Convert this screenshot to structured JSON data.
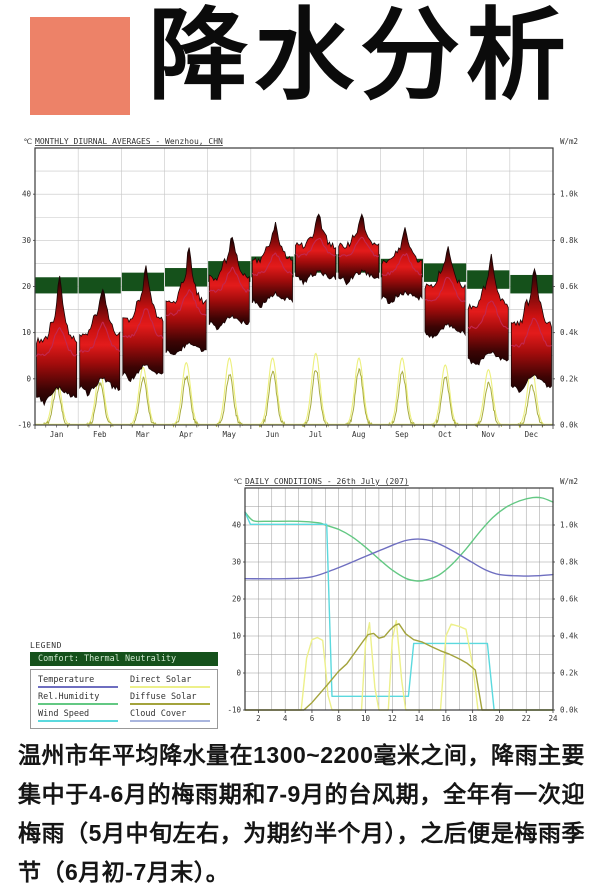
{
  "page": {
    "title": "降水分析",
    "accent_color": "#ED8268",
    "background": "#ffffff"
  },
  "paragraph": {
    "text": "温州市年平均降水量在1300~2200毫米之间，降雨主要集中于4-6月的梅雨期和7-9月的台风期，全年有一次迎梅雨（5月中旬左右，为期约半个月），之后便是梅雨季节（6月初-7月末）。"
  },
  "legend": {
    "header": "LEGEND",
    "comfort_label": "Comfort: Thermal Neutrality",
    "comfort_color": "#15511B",
    "entries": [
      {
        "label": "Temperature",
        "color": "#6E6EC0"
      },
      {
        "label": "Rel.Humidity",
        "color": "#63C883"
      },
      {
        "label": "Wind Speed",
        "color": "#5BD9DE"
      },
      {
        "label": "Direct Solar",
        "color": "#EDF08A"
      },
      {
        "label": "Diffuse Solar",
        "color": "#A3A33C"
      },
      {
        "label": "Cloud Cover",
        "color": "#A9B5DE"
      }
    ]
  },
  "chart_data": [
    {
      "type": "area",
      "title": "MONTHLY DIURNAL AVERAGES - Wenzhou, CHN",
      "ylabel_left": "℃",
      "ylabel_right": "W/m2",
      "y_range": [
        -10,
        50
      ],
      "y_left_ticks": [
        40,
        30,
        20,
        10,
        0,
        -10
      ],
      "y_right_ticks": [
        {
          "label": "1.0k",
          "at": 40
        },
        {
          "label": "0.8k",
          "at": 30
        },
        {
          "label": "0.6k",
          "at": 20
        },
        {
          "label": "0.4k",
          "at": 10
        },
        {
          "label": "0.2k",
          "at": 0
        },
        {
          "label": "0.0k",
          "at": -10
        }
      ],
      "months": [
        "Jan",
        "Feb",
        "Mar",
        "Apr",
        "May",
        "Jun",
        "Jul",
        "Aug",
        "Sep",
        "Oct",
        "Nov",
        "Dec"
      ],
      "temperature_c": [
        {
          "min": -4,
          "max": 16,
          "peak": 22,
          "mean_lo": 4,
          "mean_hi": 11
        },
        {
          "min": -2,
          "max": 17,
          "peak": 19.5,
          "mean_lo": 5,
          "mean_hi": 12
        },
        {
          "min": 1,
          "max": 20,
          "peak": 24,
          "mean_lo": 8,
          "mean_hi": 15
        },
        {
          "min": 6,
          "max": 23,
          "peak": 28.5,
          "mean_lo": 13,
          "mean_hi": 19
        },
        {
          "min": 12,
          "max": 28,
          "peak": 31,
          "mean_lo": 18,
          "mean_hi": 24
        },
        {
          "min": 17,
          "max": 31,
          "peak": 33.5,
          "mean_lo": 22,
          "mean_hi": 27
        },
        {
          "min": 22,
          "max": 33,
          "peak": 35.5,
          "mean_lo": 26,
          "mean_hi": 30.5
        },
        {
          "min": 22,
          "max": 33,
          "peak": 35.5,
          "mean_lo": 26,
          "mean_hi": 30.5
        },
        {
          "min": 17.5,
          "max": 30,
          "peak": 32.5,
          "mean_lo": 22,
          "mean_hi": 27
        },
        {
          "min": 10,
          "max": 26,
          "peak": 28.5,
          "mean_lo": 16,
          "mean_hi": 22
        },
        {
          "min": 4,
          "max": 23,
          "peak": 26.5,
          "mean_lo": 10,
          "mean_hi": 17
        },
        {
          "min": -1.5,
          "max": 20,
          "peak": 23.5,
          "mean_lo": 6,
          "mean_hi": 13
        }
      ],
      "comfort_band_c": [
        [
          18.5,
          22
        ],
        [
          18.5,
          22
        ],
        [
          19,
          23
        ],
        [
          20,
          24
        ],
        [
          21,
          25.5
        ],
        [
          22,
          26.5
        ],
        [
          23,
          27
        ],
        [
          23,
          27
        ],
        [
          22,
          26
        ],
        [
          21,
          25
        ],
        [
          19.5,
          23.5
        ],
        [
          18.5,
          22.5
        ]
      ],
      "direct_solar_peak_wm2": [
        210,
        230,
        250,
        270,
        290,
        290,
        310,
        290,
        290,
        260,
        240,
        250
      ],
      "diffuse_solar_peak_wm2": [
        160,
        180,
        200,
        210,
        220,
        230,
        240,
        240,
        230,
        210,
        180,
        170
      ],
      "colors": {
        "comfort": "#15511B",
        "blob_bright": "#E01818",
        "blob_dark": "#1A0303",
        "mean_line": "#C22850",
        "direct": "#EDF07E",
        "diffuse": "#A8AC40",
        "grid": "#C6C6C6",
        "border": "#3A3A3A"
      }
    },
    {
      "type": "line",
      "title": "DAILY CONDITIONS - 26th July (207)",
      "ylabel_left": "℃",
      "ylabel_right": "W/m2",
      "y_range": [
        -10,
        50
      ],
      "y_left_ticks": [
        40,
        30,
        20,
        10,
        0,
        -10
      ],
      "y_right_ticks": [
        {
          "label": "1.0k",
          "at": 40
        },
        {
          "label": "0.8k",
          "at": 30
        },
        {
          "label": "0.6k",
          "at": 20
        },
        {
          "label": "0.4k",
          "at": 10
        },
        {
          "label": "0.2k",
          "at": 0
        },
        {
          "label": "0.0k",
          "at": -10
        }
      ],
      "x_ticks": [
        2,
        4,
        6,
        8,
        10,
        12,
        14,
        16,
        18,
        20,
        22,
        24
      ],
      "x_range": [
        1,
        24
      ],
      "grid": true,
      "series": [
        {
          "name": "Rel.Humidity",
          "color": "#63C883",
          "smooth": true,
          "points": [
            [
              1,
              43.5
            ],
            [
              1.6,
              41.2
            ],
            [
              2.5,
              41
            ],
            [
              5,
              41
            ],
            [
              6.5,
              40.6
            ],
            [
              7,
              40
            ],
            [
              8,
              38.8
            ],
            [
              9,
              36.8
            ],
            [
              10,
              34
            ],
            [
              11,
              30.8
            ],
            [
              12,
              27.8
            ],
            [
              13,
              25.6
            ],
            [
              13.8,
              24.9
            ],
            [
              14.5,
              25.1
            ],
            [
              15.5,
              26.5
            ],
            [
              16.5,
              29.5
            ],
            [
              17.5,
              33.5
            ],
            [
              18.5,
              38
            ],
            [
              19.5,
              42
            ],
            [
              20.5,
              44.8
            ],
            [
              21.5,
              46.5
            ],
            [
              22.5,
              47.4
            ],
            [
              23.2,
              47.3
            ],
            [
              24,
              46.2
            ]
          ]
        },
        {
          "name": "Temperature",
          "color": "#6E6EC0",
          "smooth": true,
          "points": [
            [
              1,
              25.5
            ],
            [
              4,
              25.5
            ],
            [
              6,
              26
            ],
            [
              8,
              28.5
            ],
            [
              10,
              31.5
            ],
            [
              12,
              34.5
            ],
            [
              13,
              35.8
            ],
            [
              14,
              36.2
            ],
            [
              15,
              35.6
            ],
            [
              16,
              34
            ],
            [
              17,
              32
            ],
            [
              18,
              29.8
            ],
            [
              19,
              27.8
            ],
            [
              20,
              26.6
            ],
            [
              21,
              26.3
            ],
            [
              22,
              26.2
            ],
            [
              23,
              26.3
            ],
            [
              24,
              26.6
            ]
          ]
        },
        {
          "name": "Wind Speed",
          "color": "#5BD9DE",
          "smooth": false,
          "points": [
            [
              1,
              43.5
            ],
            [
              1.4,
              40.2
            ],
            [
              7.1,
              40.2
            ],
            [
              7.5,
              -6.3
            ],
            [
              13.2,
              -6.3
            ],
            [
              13.6,
              8
            ],
            [
              19.1,
              8
            ],
            [
              19.6,
              -10
            ],
            [
              24,
              -10
            ]
          ]
        },
        {
          "name": "Direct Solar",
          "color": "#EDF08A",
          "smooth": false,
          "points": [
            [
              1,
              -10
            ],
            [
              5.2,
              -10
            ],
            [
              5.6,
              4
            ],
            [
              6,
              9
            ],
            [
              6.4,
              9.6
            ],
            [
              6.8,
              8.8
            ],
            [
              7,
              2
            ],
            [
              7.2,
              -6
            ],
            [
              7.5,
              -10
            ],
            [
              9.7,
              -10
            ],
            [
              10,
              8
            ],
            [
              10.3,
              13.6
            ],
            [
              10.7,
              -4
            ],
            [
              11,
              -10
            ],
            [
              11.7,
              -10
            ],
            [
              12,
              9
            ],
            [
              12.3,
              14.2
            ],
            [
              12.7,
              -2
            ],
            [
              13,
              -10
            ],
            [
              15.6,
              -10
            ],
            [
              16,
              10
            ],
            [
              16.4,
              13.2
            ],
            [
              17,
              12.6
            ],
            [
              17.5,
              11.8
            ],
            [
              18,
              2
            ],
            [
              18.4,
              -10
            ],
            [
              24,
              -10
            ]
          ]
        },
        {
          "name": "Diffuse Solar",
          "color": "#A3A33C",
          "smooth": false,
          "points": [
            [
              1,
              -10
            ],
            [
              5.4,
              -10
            ],
            [
              6,
              -8
            ],
            [
              6.6,
              -5.5
            ],
            [
              7.2,
              -3
            ],
            [
              8,
              0.5
            ],
            [
              8.6,
              2.5
            ],
            [
              9.2,
              5.5
            ],
            [
              9.8,
              8.5
            ],
            [
              10.2,
              10.4
            ],
            [
              10.6,
              10.7
            ],
            [
              11,
              9.4
            ],
            [
              11.4,
              9.8
            ],
            [
              11.8,
              11.5
            ],
            [
              12.2,
              12.9
            ],
            [
              12.5,
              13.3
            ],
            [
              13,
              10.6
            ],
            [
              13.6,
              9
            ],
            [
              14.2,
              8.4
            ],
            [
              15,
              7
            ],
            [
              15.6,
              6
            ],
            [
              16.2,
              5.2
            ],
            [
              17,
              3.8
            ],
            [
              17.6,
              2.6
            ],
            [
              18.2,
              0.8
            ],
            [
              18.7,
              -10
            ],
            [
              24,
              -10
            ]
          ]
        }
      ],
      "colors": {
        "grid": "#9A9A9A",
        "border": "#3A3A3A"
      }
    }
  ]
}
